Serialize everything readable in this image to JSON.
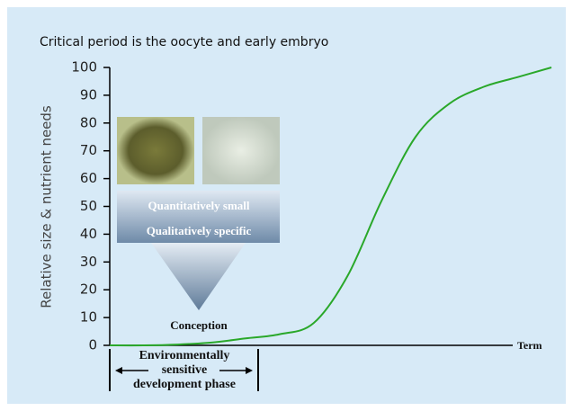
{
  "chart_data": {
    "type": "line",
    "title": "Critical period is the oocyte and early embryo",
    "y_label": "Relative size & nutrient needs",
    "x_end_label": "Term",
    "categories": [
      null,
      null,
      null,
      null,
      null,
      null,
      null,
      null,
      null,
      null,
      null,
      null,
      null,
      null
    ],
    "values": [
      0,
      0,
      0.3,
      1,
      2.5,
      4,
      8,
      25,
      52,
      75,
      87,
      93,
      96.5,
      100
    ],
    "color": "#2aa82a",
    "ylim": [
      0,
      100
    ],
    "yticks": [
      0,
      10,
      20,
      30,
      40,
      50,
      60,
      70,
      80,
      90,
      100
    ],
    "annotations": {
      "box_line1": "Quantitatively small",
      "box_line2": "Qualitatively specific",
      "conception": "Conception",
      "phase_line1": "Environmentally",
      "phase_line2": "sensitive",
      "phase_line3": "development phase"
    }
  }
}
